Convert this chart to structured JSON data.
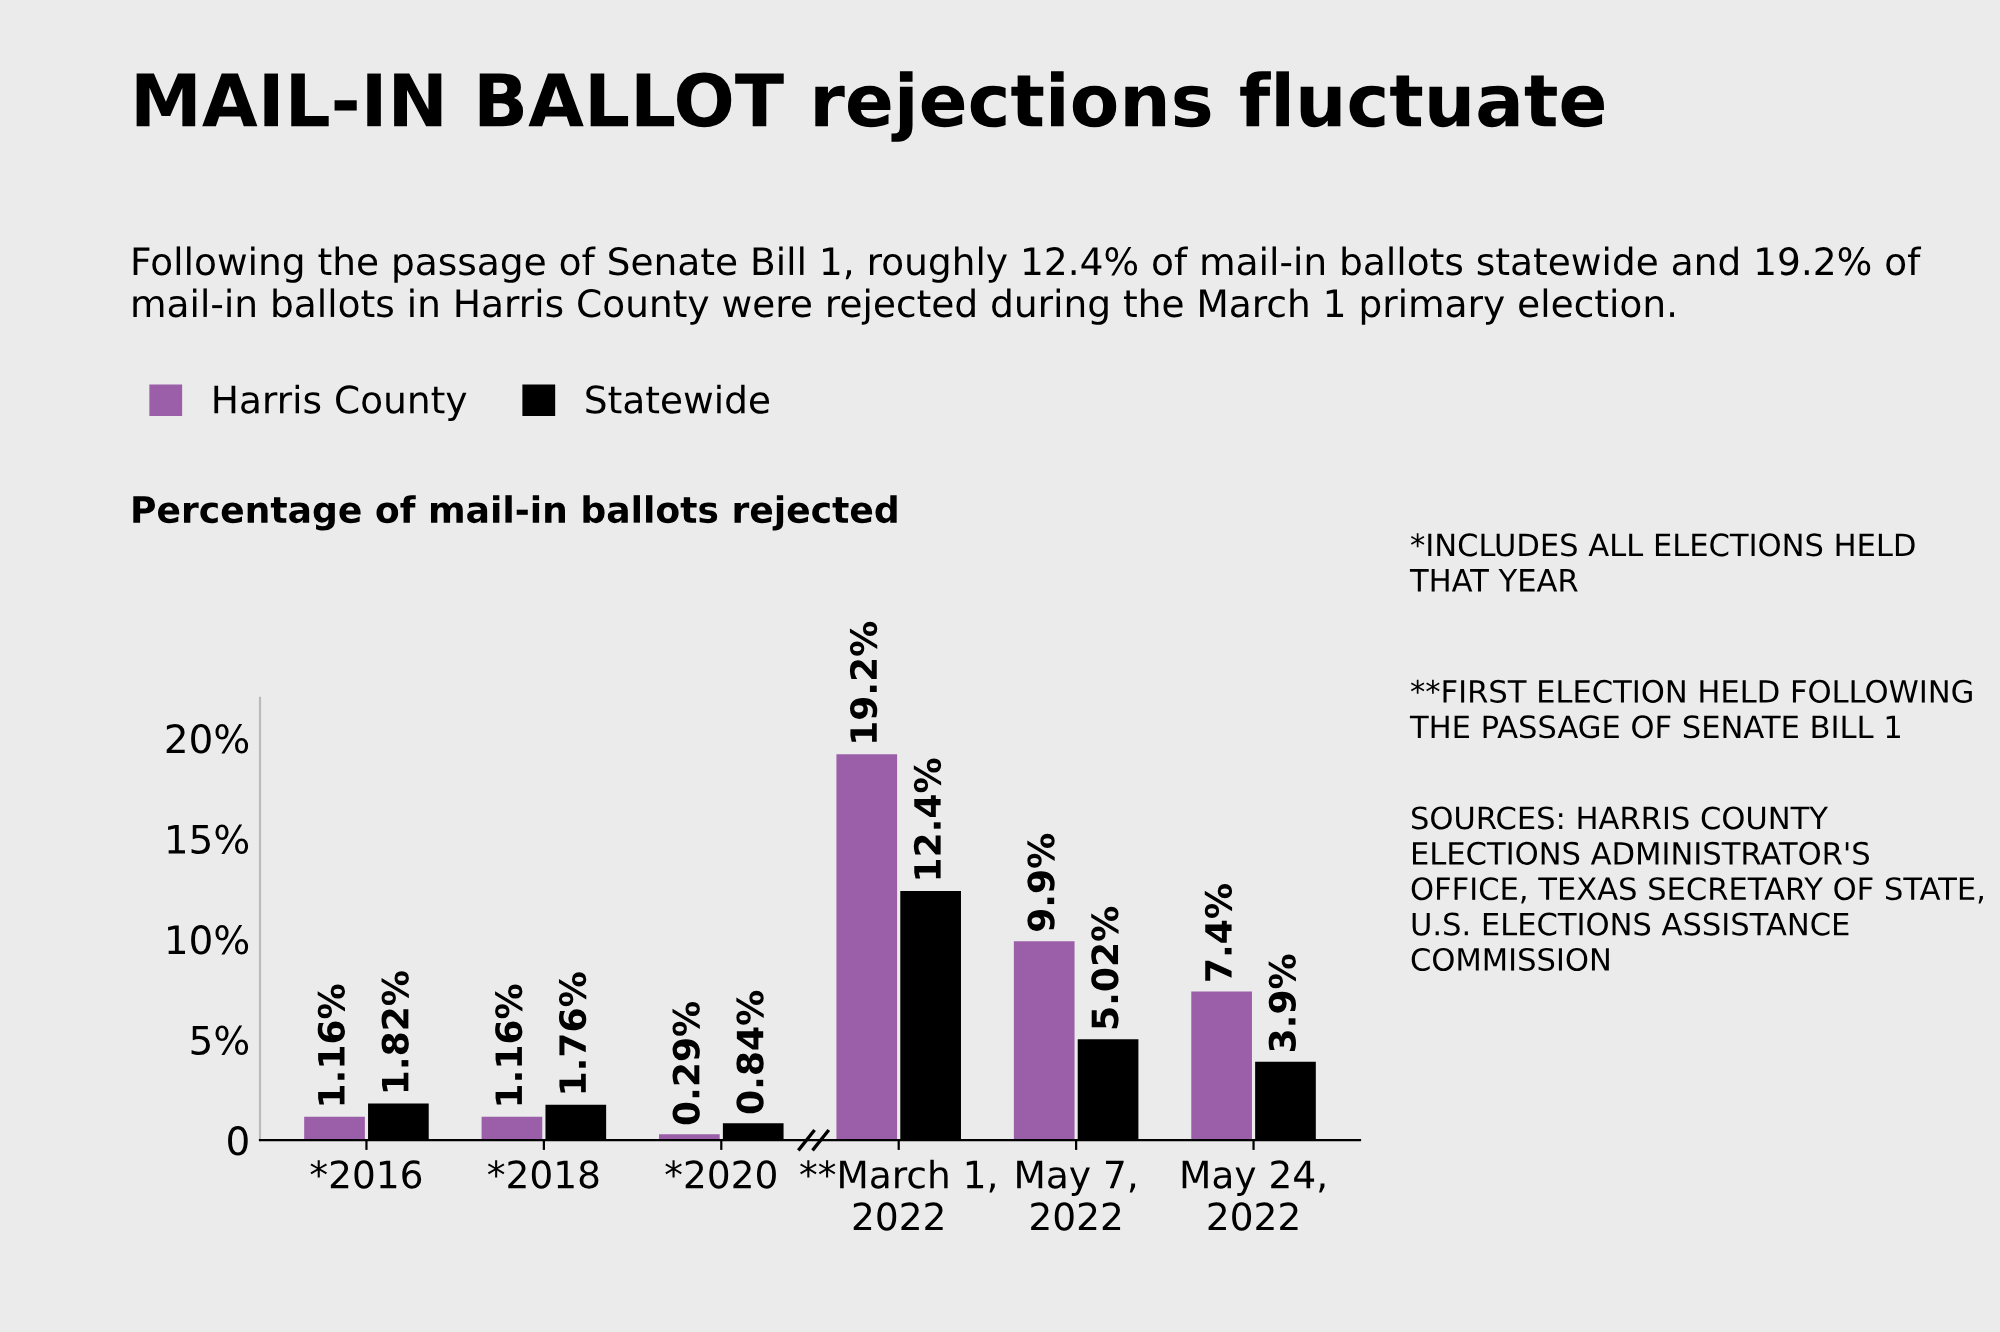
{
  "chart_data": {
    "type": "bar",
    "title": "MAIL-IN BALLOT rejections fluctuate",
    "subtitle": "Following the passage of Senate Bill 1, roughly 12.4% of mail-in ballots statewide and 19.2% of mail-in ballots in Harris County were rejected during the March 1 primary election.",
    "ylabel": "Percentage of mail-in ballots rejected",
    "categories": [
      "*2016",
      "*2018",
      "*2020",
      "**March 1,\n2022",
      "May 7,\n2022",
      "May 24,\n2022"
    ],
    "series": [
      {
        "name": "Harris County",
        "color": "#9b5ea8",
        "values": [
          1.16,
          1.16,
          0.29,
          19.2,
          9.9,
          7.4
        ],
        "value_labels": [
          "1.16%",
          "1.16%",
          "0.29%",
          "19.2%",
          "9.9%",
          "7.4%"
        ]
      },
      {
        "name": "Statewide",
        "color": "#000000",
        "values": [
          1.82,
          1.76,
          0.84,
          12.4,
          5.02,
          3.9
        ],
        "value_labels": [
          "1.82%",
          "1.76%",
          "0.84%",
          "12.4%",
          "5.02%",
          "3.9%"
        ]
      }
    ],
    "ylim": [
      0,
      22
    ],
    "yticks": [
      0,
      {
        "value": 5,
        "label": "5%"
      },
      {
        "value": 10,
        "label": "10%"
      },
      {
        "value": 15,
        "label": "15%"
      },
      {
        "value": 20,
        "label": "20%"
      }
    ],
    "legend": "top left",
    "grid": false,
    "annotations": [
      "*INCLUDES ALL ELECTIONS HELD THAT YEAR",
      "**FIRST ELECTION HELD FOLLOWING THE PASSAGE OF SENATE BILL 1",
      "SOURCES: HARRIS COUNTY ELECTIONS ADMINISTRATOR'S OFFICE, TEXAS SECRETARY OF STATE, U.S. ELECTIONS ASSISTANCE COMMISSION"
    ]
  }
}
